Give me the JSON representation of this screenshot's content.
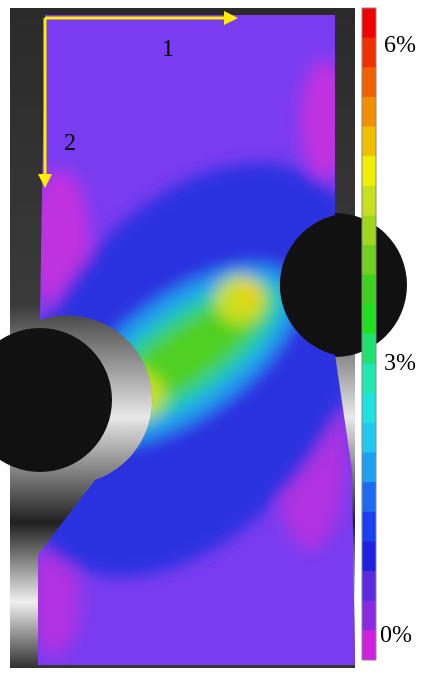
{
  "figure": {
    "axis_labels": [
      "1",
      "2"
    ],
    "colorbar_labels": [
      "6%",
      "3%",
      "0%"
    ]
  }
}
